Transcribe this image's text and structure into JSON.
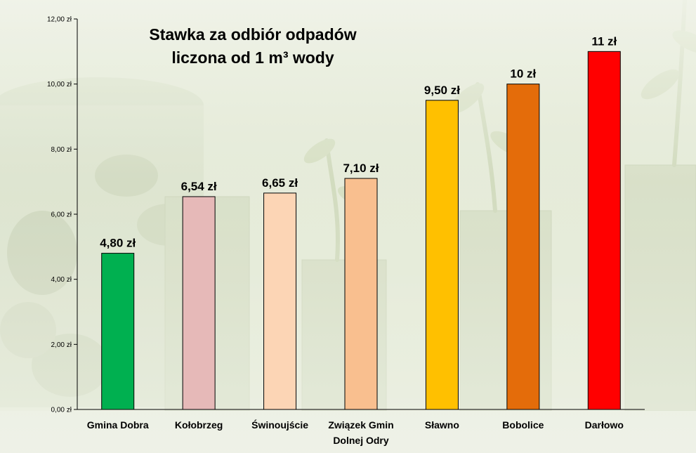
{
  "chart_data": {
    "type": "bar",
    "title_lines": [
      "Stawka za odbiór odpadów",
      "liczona od 1 m³ wody"
    ],
    "categories": [
      [
        "Gmina Dobra"
      ],
      [
        "Kołobrzeg"
      ],
      [
        "Świnoujście"
      ],
      [
        "Związek Gmin",
        "Dolnej Odry"
      ],
      [
        "Sławno"
      ],
      [
        "Bobolice"
      ],
      [
        "Darłowo"
      ]
    ],
    "values": [
      4.8,
      6.54,
      6.65,
      7.1,
      9.5,
      10,
      11
    ],
    "data_labels": [
      "4,80 zł",
      "6,54 zł",
      "6,65 zł",
      "7,10 zł",
      "9,50 zł",
      "10 zł",
      "11 zł"
    ],
    "colors": [
      "#00b050",
      "#e6b9b8",
      "#fcd5b5",
      "#f9bf8f",
      "#ffc000",
      "#e46c0a",
      "#ff0000"
    ],
    "ylim": [
      0,
      12
    ],
    "yticks": [
      {
        "value": 0,
        "label": "0,00 zł"
      },
      {
        "value": 2,
        "label": "2,00 zł"
      },
      {
        "value": 4,
        "label": "4,00 zł"
      },
      {
        "value": 6,
        "label": "6,00 zł"
      },
      {
        "value": 8,
        "label": "8,00 zł"
      },
      {
        "value": 10,
        "label": "10,00 zł"
      },
      {
        "value": 12,
        "label": "12,00 zł"
      }
    ],
    "xlabel": "",
    "ylabel": "",
    "grid": false,
    "legend": "none",
    "background": "photo of coins and plant sprouts, pale green tint"
  }
}
